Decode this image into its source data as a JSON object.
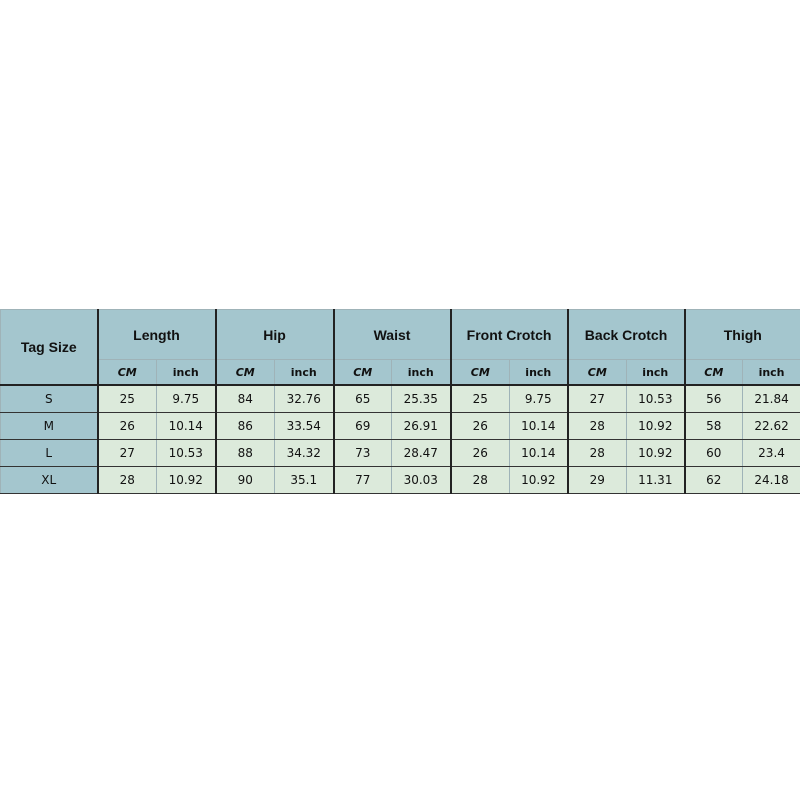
{
  "table": {
    "tag_header": "Tag Size",
    "groups": [
      "Length",
      "Hip",
      "Waist",
      "Front Crotch",
      "Back Crotch",
      "Thigh"
    ],
    "unit_cm": "CM",
    "unit_inch": "inch",
    "rows": [
      {
        "size": "S",
        "values": [
          "25",
          "9.75",
          "84",
          "32.76",
          "65",
          "25.35",
          "25",
          "9.75",
          "27",
          "10.53",
          "56",
          "21.84"
        ]
      },
      {
        "size": "M",
        "values": [
          "26",
          "10.14",
          "86",
          "33.54",
          "69",
          "26.91",
          "26",
          "10.14",
          "28",
          "10.92",
          "58",
          "22.62"
        ]
      },
      {
        "size": "L",
        "values": [
          "27",
          "10.53",
          "88",
          "34.32",
          "73",
          "28.47",
          "26",
          "10.14",
          "28",
          "10.92",
          "60",
          "23.4"
        ]
      },
      {
        "size": "XL",
        "values": [
          "28",
          "10.92",
          "90",
          "35.1",
          "77",
          "30.03",
          "28",
          "10.92",
          "29",
          "11.31",
          "62",
          "24.18"
        ]
      }
    ]
  },
  "colors": {
    "header_bg": "#a4c6ce",
    "cell_bg": "#dceadb"
  }
}
